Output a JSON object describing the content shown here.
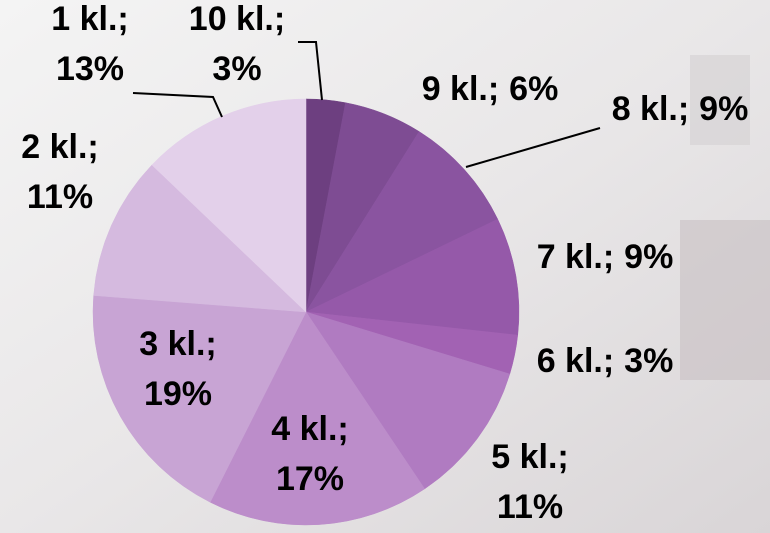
{
  "chart_data": {
    "type": "pie",
    "categories": [
      "10 kl.;",
      "9 kl.;",
      "8 kl.;",
      "7 kl.;",
      "6 kl.;",
      "5 kl.;",
      "4 kl.;",
      "3 kl.;",
      "2 kl.;",
      "1 kl.;"
    ],
    "values": [
      3,
      6,
      9,
      9,
      3,
      11,
      17,
      19,
      11,
      13
    ],
    "value_labels": [
      "3%",
      "6%",
      "9%",
      "9%",
      "3%",
      "11%",
      "17%",
      "19%",
      "11%",
      "13%"
    ],
    "colors": [
      "#6d3f80",
      "#7e4c93",
      "#8a54a0",
      "#9559a9",
      "#a262b3",
      "#b07bc1",
      "#bc8dca",
      "#c8a4d4",
      "#d5badf",
      "#e3d0ea"
    ]
  }
}
